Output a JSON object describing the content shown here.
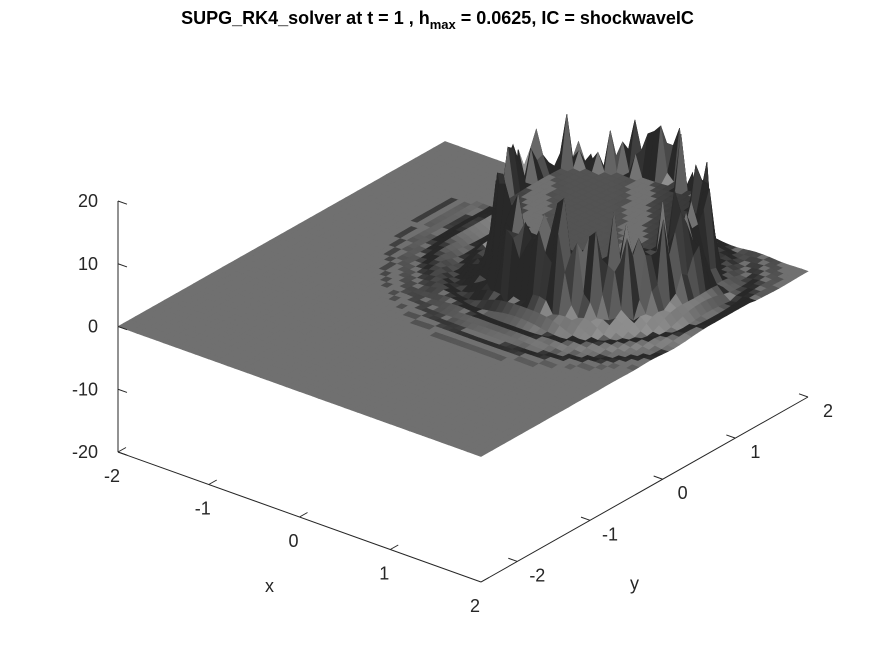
{
  "chart_data": {
    "type": "surface",
    "title": {
      "prefix": "SUPG_RK4_solver at t = 1 , h",
      "subscript": "max",
      "suffix": " = 0.0625, IC = shockwaveIC"
    },
    "xlabel": "x",
    "ylabel": "y",
    "zlabel": "",
    "xlim": [
      -2,
      2
    ],
    "ylim": [
      -2.5,
      2
    ],
    "zlim": [
      -20,
      20
    ],
    "x_ticks": [
      -2,
      -1,
      0,
      1,
      2
    ],
    "x_tick_labels": [
      "-2",
      "-1",
      "0",
      "1",
      "2"
    ],
    "y_ticks": [
      -2,
      -1,
      0,
      1,
      2
    ],
    "y_tick_labels": [
      "-2",
      "-1",
      "0",
      "1",
      "2"
    ],
    "z_ticks": [
      -20,
      -10,
      0,
      10,
      20
    ],
    "z_tick_labels": [
      "-20",
      "-10",
      "0",
      "10",
      "20"
    ],
    "colormap": "gray",
    "surface_color": "#707070",
    "grid": false,
    "legend": "none",
    "features": {
      "ring_center": [
        0.6,
        0.9
      ],
      "ring_radius": 0.9,
      "plateau_height": 10,
      "spike_max": 19
    }
  }
}
